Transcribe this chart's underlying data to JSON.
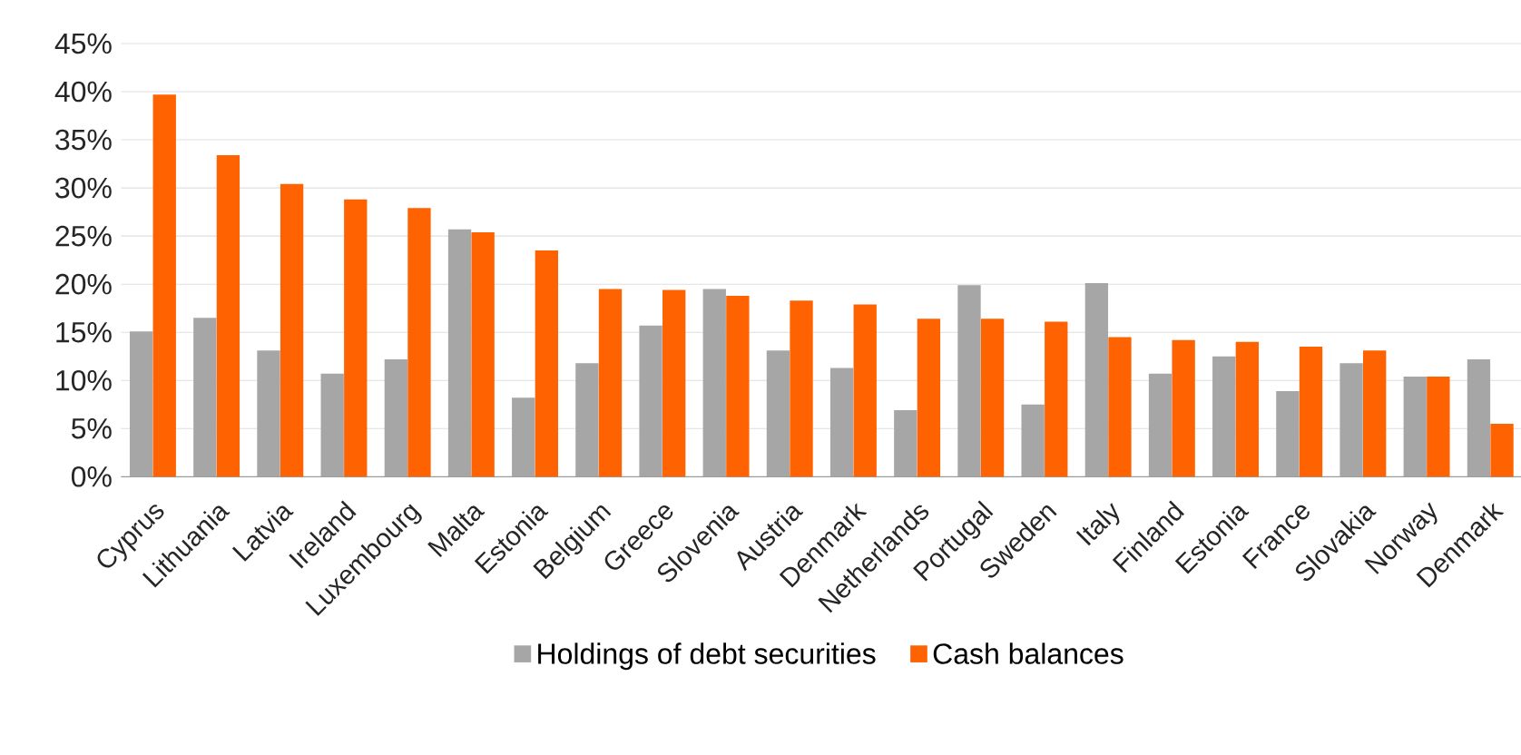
{
  "chart_data": {
    "type": "bar",
    "categories": [
      "Cyprus",
      "Lithuania",
      "Latvia",
      "Ireland",
      "Luxembourg",
      "Malta",
      "Estonia",
      "Belgium",
      "Greece",
      "Slovenia",
      "Austria",
      "Denmark",
      "Netherlands",
      "Portugal",
      "Sweden",
      "Italy",
      "Finland",
      "Estonia",
      "France",
      "Slovakia",
      "Norway",
      "Denmark"
    ],
    "series": [
      {
        "name": "Holdings of debt securities",
        "color": "#a6a6a6",
        "values": [
          15.1,
          16.5,
          13.1,
          10.7,
          12.2,
          25.7,
          8.2,
          11.8,
          15.7,
          19.5,
          13.1,
          11.3,
          6.9,
          19.9,
          7.5,
          20.1,
          10.7,
          12.5,
          8.9,
          11.8,
          10.4,
          12.2
        ]
      },
      {
        "name": "Cash balances",
        "color": "#ff6200",
        "values": [
          39.7,
          33.4,
          30.4,
          28.8,
          27.9,
          25.4,
          23.5,
          19.5,
          19.4,
          18.8,
          18.3,
          17.9,
          16.4,
          16.4,
          16.1,
          14.5,
          14.2,
          14.0,
          13.5,
          13.1,
          10.4,
          5.5
        ]
      }
    ],
    "ylim": [
      0,
      45
    ],
    "yticks": [
      {
        "value": 0,
        "label": "0%"
      },
      {
        "value": 5,
        "label": "5%"
      },
      {
        "value": 10,
        "label": "10%"
      },
      {
        "value": 15,
        "label": "15%"
      },
      {
        "value": 20,
        "label": "20%"
      },
      {
        "value": 25,
        "label": "25%"
      },
      {
        "value": 30,
        "label": "30%"
      },
      {
        "value": 35,
        "label": "35%"
      },
      {
        "value": 40,
        "label": "40%"
      },
      {
        "value": 45,
        "label": "45%"
      }
    ],
    "grid": "y",
    "legend": "bottom"
  }
}
